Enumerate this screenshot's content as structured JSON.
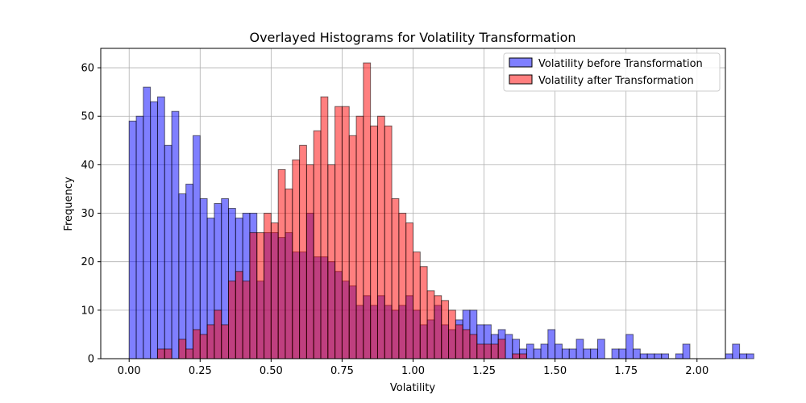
{
  "chart_data": {
    "type": "bar",
    "title": "Overlayed Histograms for Volatility Transformation",
    "xlabel": "Volatility",
    "ylabel": "Frequency",
    "xlim": [
      -0.1,
      2.1
    ],
    "ylim": [
      0,
      64
    ],
    "xticks": [
      0.0,
      0.25,
      0.5,
      0.75,
      1.0,
      1.25,
      1.5,
      1.75,
      2.0
    ],
    "xtick_labels": [
      "0.00",
      "0.25",
      "0.50",
      "0.75",
      "1.00",
      "1.25",
      "1.50",
      "1.75",
      "2.00"
    ],
    "yticks": [
      0,
      10,
      20,
      30,
      40,
      50,
      60
    ],
    "ytick_labels": [
      "0",
      "10",
      "20",
      "30",
      "40",
      "50",
      "60"
    ],
    "bin_width": 0.025,
    "bin_start": 0.0,
    "grid": true,
    "legend_position": "top-right",
    "series": [
      {
        "name": "Volatility before Transformation",
        "color": "#0000ff",
        "opacity": 0.5,
        "values": [
          49,
          50,
          56,
          53,
          54,
          44,
          51,
          34,
          36,
          46,
          33,
          29,
          32,
          33,
          31,
          29,
          30,
          30,
          16,
          26,
          26,
          25,
          26,
          22,
          22,
          30,
          21,
          21,
          20,
          18,
          16,
          15,
          11,
          13,
          11,
          13,
          11,
          10,
          11,
          13,
          10,
          7,
          8,
          11,
          7,
          6,
          8,
          10,
          10,
          7,
          7,
          5,
          6,
          5,
          4,
          2,
          3,
          2,
          3,
          6,
          3,
          2,
          2,
          4,
          2,
          2,
          4,
          0,
          2,
          2,
          5,
          2,
          1,
          1,
          1,
          1,
          0,
          1,
          3,
          0,
          0,
          0,
          0,
          0,
          1,
          3,
          1,
          1
        ]
      },
      {
        "name": "Volatility after Transformation",
        "color": "#ff0000",
        "opacity": 0.5,
        "values": [
          0,
          0,
          0,
          0,
          2,
          2,
          0,
          4,
          2,
          6,
          5,
          7,
          10,
          7,
          16,
          18,
          16,
          26,
          26,
          30,
          28,
          39,
          35,
          41,
          44,
          40,
          47,
          54,
          40,
          52,
          52,
          46,
          50,
          61,
          48,
          50,
          48,
          33,
          30,
          28,
          22,
          19,
          14,
          13,
          12,
          10,
          7,
          6,
          5,
          3,
          3,
          3,
          4,
          0,
          1,
          1,
          0,
          0,
          0,
          0,
          0,
          0,
          0,
          0,
          0,
          0,
          0,
          0,
          0,
          0,
          0,
          0,
          0,
          0,
          0,
          0,
          0,
          0,
          0,
          0,
          0,
          0,
          0,
          0,
          0,
          0,
          0,
          0
        ]
      }
    ]
  }
}
